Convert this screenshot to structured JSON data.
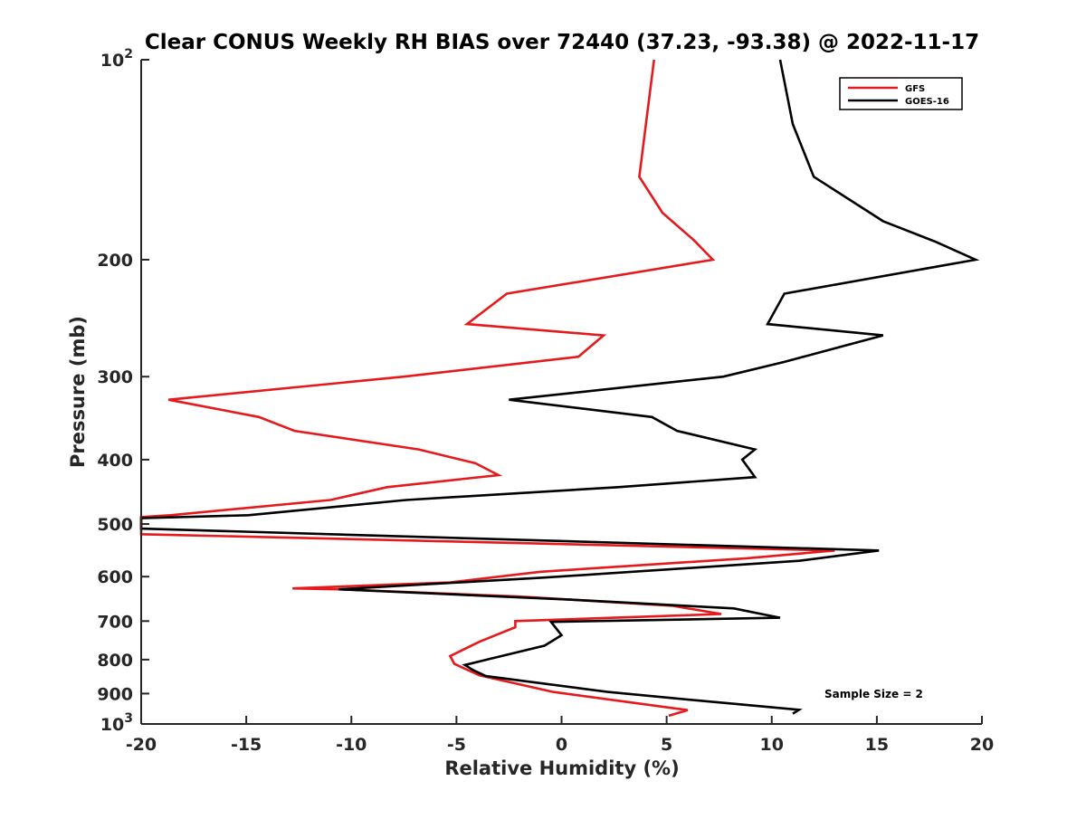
{
  "chart_data": {
    "type": "line",
    "title": "Clear CONUS Weekly RH BIAS over 72440 (37.23, -93.38) @ 2022-11-17",
    "xlabel": "Relative Humidity (%)",
    "ylabel": "Pressure (mb)",
    "xlim": [
      -20,
      20
    ],
    "ylim": [
      100,
      1000
    ],
    "y_scale": "log",
    "y_reversed": true,
    "x_ticks": [
      -20,
      -15,
      -10,
      -5,
      0,
      5,
      10,
      15,
      20
    ],
    "x_tick_labels": [
      "-20",
      "-15",
      "-10",
      "-5",
      "0",
      "5",
      "10",
      "15",
      "20"
    ],
    "y_ticks": [
      100,
      200,
      300,
      400,
      500,
      600,
      700,
      800,
      900,
      1000
    ],
    "y_tick_labels": [
      {
        "base": "10",
        "exp": "2"
      },
      {
        "base": "200",
        "exp": ""
      },
      {
        "base": "300",
        "exp": ""
      },
      {
        "base": "400",
        "exp": ""
      },
      {
        "base": "500",
        "exp": ""
      },
      {
        "base": "600",
        "exp": ""
      },
      {
        "base": "700",
        "exp": ""
      },
      {
        "base": "800",
        "exp": ""
      },
      {
        "base": "900",
        "exp": ""
      },
      {
        "base": "10",
        "exp": "3"
      }
    ],
    "grid": false,
    "legend_position": "top-right",
    "annotation": "Sample Size = 2",
    "series": [
      {
        "name": "GFS",
        "color": "#e41a1c",
        "points": [
          [
            4.4,
            100
          ],
          [
            3.7,
            150
          ],
          [
            4.8,
            170
          ],
          [
            6.3,
            187
          ],
          [
            7.2,
            200
          ],
          [
            -2.6,
            225
          ],
          [
            -4.5,
            250
          ],
          [
            2.0,
            260
          ],
          [
            0.8,
            280
          ],
          [
            -7.5,
            300
          ],
          [
            -18.7,
            325
          ],
          [
            -14.4,
            345
          ],
          [
            -12.7,
            362
          ],
          [
            -6.8,
            386
          ],
          [
            -4.1,
            405
          ],
          [
            -3.0,
            422
          ],
          [
            -8.3,
            440
          ],
          [
            -11.0,
            460
          ],
          [
            -18.6,
            485
          ],
          [
            -20.0,
            488
          ],
          [
            -20.0,
            518
          ],
          [
            13.0,
            548
          ],
          [
            8.8,
            563
          ],
          [
            -1.0,
            590
          ],
          [
            -5.3,
            612
          ],
          [
            -12.8,
            625
          ],
          [
            -10.6,
            627
          ],
          [
            -2.0,
            643
          ],
          [
            5.3,
            664
          ],
          [
            7.6,
            683
          ],
          [
            -2.2,
            700
          ],
          [
            -2.2,
            715
          ],
          [
            -3.9,
            752
          ],
          [
            -5.3,
            790
          ],
          [
            -5.1,
            812
          ],
          [
            -3.9,
            845
          ],
          [
            -0.4,
            895
          ],
          [
            6.0,
            953
          ],
          [
            5.1,
            972
          ]
        ]
      },
      {
        "name": "GOES-16",
        "color": "#000000",
        "points": [
          [
            10.4,
            100
          ],
          [
            11.0,
            125
          ],
          [
            12.0,
            150
          ],
          [
            15.3,
            175
          ],
          [
            17.8,
            188
          ],
          [
            19.7,
            200
          ],
          [
            10.6,
            225
          ],
          [
            9.8,
            250
          ],
          [
            15.3,
            260
          ],
          [
            10.6,
            285
          ],
          [
            7.7,
            300
          ],
          [
            -2.5,
            325
          ],
          [
            4.3,
            345
          ],
          [
            5.5,
            362
          ],
          [
            9.2,
            386
          ],
          [
            8.6,
            400
          ],
          [
            9.2,
            425
          ],
          [
            2.7,
            440
          ],
          [
            -7.4,
            460
          ],
          [
            -14.9,
            485
          ],
          [
            -20.0,
            490
          ],
          [
            -20.0,
            508
          ],
          [
            15.1,
            548
          ],
          [
            11.3,
            568
          ],
          [
            -0.8,
            602
          ],
          [
            -10.6,
            627
          ],
          [
            0.5,
            650
          ],
          [
            8.2,
            670
          ],
          [
            10.4,
            692
          ],
          [
            -0.5,
            702
          ],
          [
            0.0,
            735
          ],
          [
            -0.8,
            762
          ],
          [
            -3.2,
            795
          ],
          [
            -4.6,
            815
          ],
          [
            -4.2,
            830
          ],
          [
            -3.6,
            847
          ],
          [
            2.2,
            895
          ],
          [
            6.5,
            922
          ],
          [
            11.3,
            952
          ],
          [
            11.0,
            965
          ]
        ]
      }
    ]
  }
}
